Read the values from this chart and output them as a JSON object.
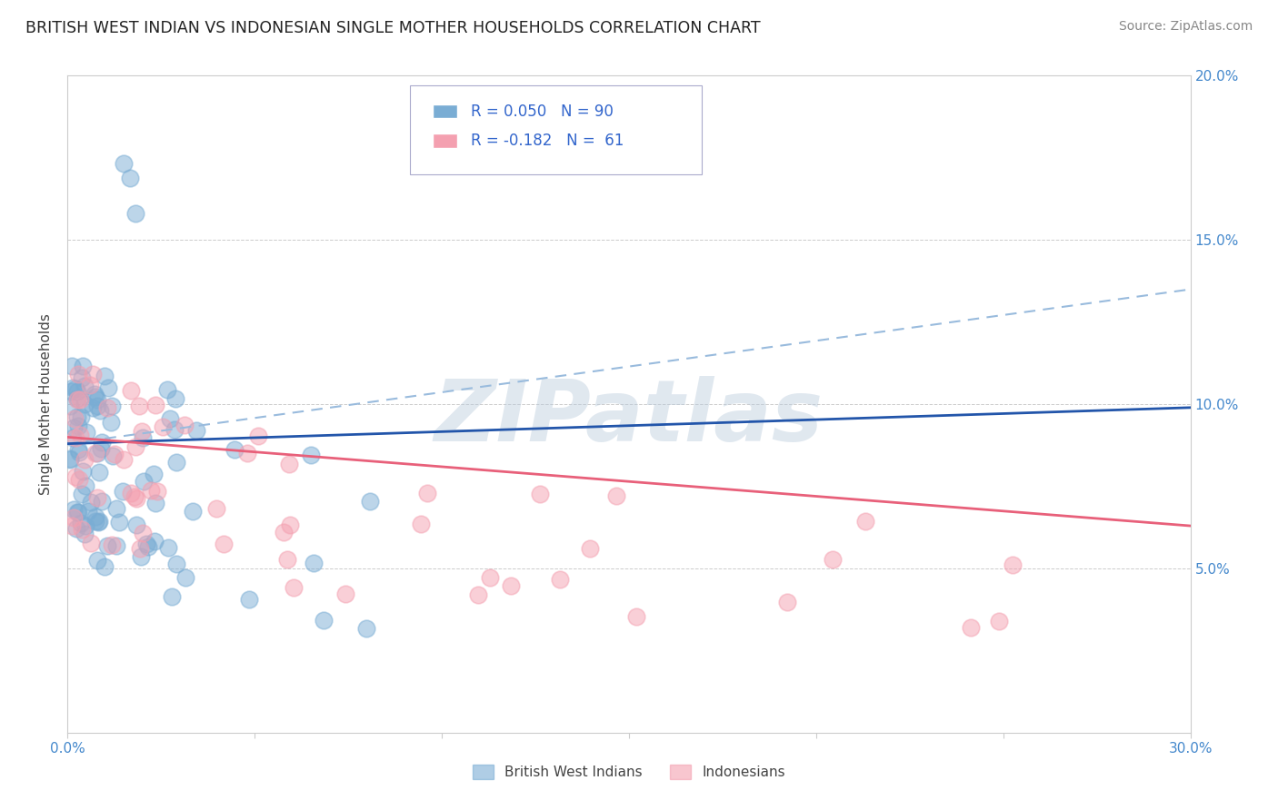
{
  "title": "BRITISH WEST INDIAN VS INDONESIAN SINGLE MOTHER HOUSEHOLDS CORRELATION CHART",
  "source": "Source: ZipAtlas.com",
  "ylabel": "Single Mother Households",
  "x_min": 0.0,
  "x_max": 0.3,
  "y_min": 0.0,
  "y_max": 0.2,
  "legend_blue_r": "R = 0.050",
  "legend_blue_n": "N = 90",
  "legend_pink_r": "R = -0.182",
  "legend_pink_n": "N =  61",
  "blue_color": "#7AADD4",
  "pink_color": "#F4A0B0",
  "blue_line_color": "#2255AA",
  "pink_line_color": "#E8607A",
  "dashed_line_color": "#99BBDD",
  "watermark_text": "ZIPatlas",
  "title_fontsize": 12.5,
  "source_fontsize": 10,
  "tick_label_color": "#4488CC",
  "legend_text_color": "#3366CC",
  "blue_line_start_y": 0.088,
  "blue_line_end_y": 0.099,
  "pink_line_start_y": 0.09,
  "pink_line_end_y": 0.063,
  "dashed_line_start_y": 0.088,
  "dashed_line_end_y": 0.135
}
